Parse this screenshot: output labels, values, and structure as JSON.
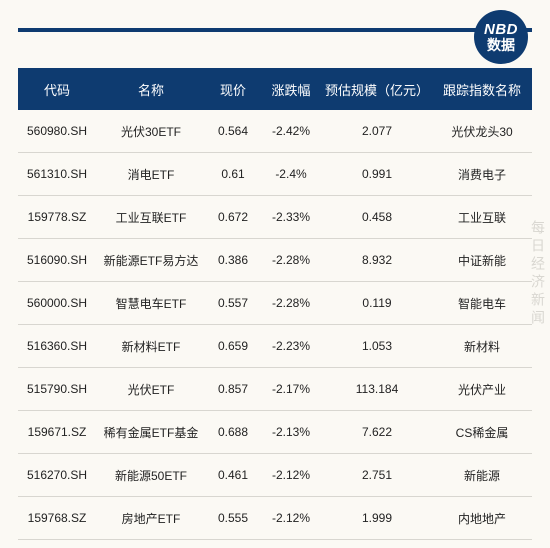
{
  "logo": {
    "top": "NBD",
    "bottom": "数据"
  },
  "watermark": "每日经济新闻",
  "colors": {
    "header_bg": "#0e3b70",
    "header_text": "#ffffff",
    "page_bg": "#fbf9f4",
    "row_text": "#222222",
    "divider": "#d8d6d0",
    "watermark": "#d9d7d1"
  },
  "columns": [
    "代码",
    "名称",
    "现价",
    "涨跌幅",
    "预估规模（亿元）",
    "跟踪指数名称"
  ],
  "rows": [
    [
      "560980.SH",
      "光伏30ETF",
      "0.564",
      "-2.42%",
      "2.077",
      "光伏龙头30"
    ],
    [
      "561310.SH",
      "消电ETF",
      "0.61",
      "-2.4%",
      "0.991",
      "消费电子"
    ],
    [
      "159778.SZ",
      "工业互联ETF",
      "0.672",
      "-2.33%",
      "0.458",
      "工业互联"
    ],
    [
      "516090.SH",
      "新能源ETF易方达",
      "0.386",
      "-2.28%",
      "8.932",
      "中证新能"
    ],
    [
      "560000.SH",
      "智慧电车ETF",
      "0.557",
      "-2.28%",
      "0.119",
      "智能电车"
    ],
    [
      "516360.SH",
      "新材料ETF",
      "0.659",
      "-2.23%",
      "1.053",
      "新材料"
    ],
    [
      "515790.SH",
      "光伏ETF",
      "0.857",
      "-2.17%",
      "113.184",
      "光伏产业"
    ],
    [
      "159671.SZ",
      "稀有金属ETF基金",
      "0.688",
      "-2.13%",
      "7.622",
      "CS稀金属"
    ],
    [
      "516270.SH",
      "新能源50ETF",
      "0.461",
      "-2.12%",
      "2.751",
      "新能源"
    ],
    [
      "159768.SZ",
      "房地产ETF",
      "0.555",
      "-2.12%",
      "1.999",
      "内地地产"
    ]
  ]
}
